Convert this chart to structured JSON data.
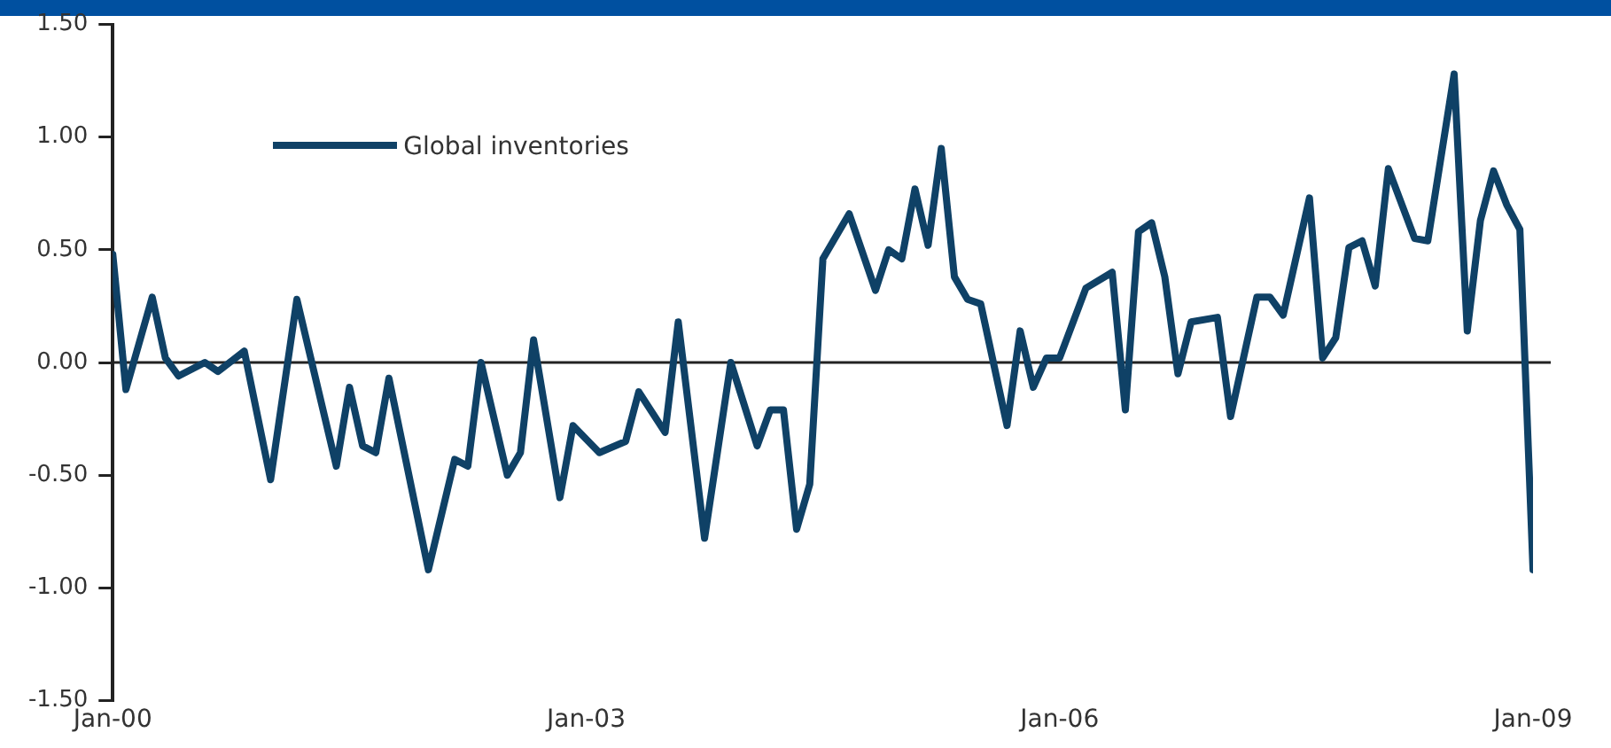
{
  "chart_data": {
    "type": "line",
    "x": [
      "2000-01",
      "2000-02",
      "2000-04",
      "2000-05",
      "2000-06",
      "2000-08",
      "2000-09",
      "2000-11",
      "2001-01",
      "2001-03",
      "2001-06",
      "2001-07",
      "2001-08",
      "2001-09",
      "2001-10",
      "2002-01",
      "2002-03",
      "2002-04",
      "2002-05",
      "2002-07",
      "2002-08",
      "2002-09",
      "2002-11",
      "2002-12",
      "2003-02",
      "2003-04",
      "2003-05",
      "2003-07",
      "2003-08",
      "2003-10",
      "2003-12",
      "2004-02",
      "2004-03",
      "2004-04",
      "2004-05",
      "2004-06",
      "2004-07",
      "2004-09",
      "2004-11",
      "2004-12",
      "2005-01",
      "2005-02",
      "2005-03",
      "2005-04",
      "2005-05",
      "2005-06",
      "2005-07",
      "2005-09",
      "2005-10",
      "2005-11",
      "2005-12",
      "2006-01",
      "2006-03",
      "2006-05",
      "2006-06",
      "2006-07",
      "2006-08",
      "2006-09",
      "2006-10",
      "2006-11",
      "2007-01",
      "2007-02",
      "2007-04",
      "2007-05",
      "2007-06",
      "2007-08",
      "2007-09",
      "2007-10",
      "2007-11",
      "2007-12",
      "2008-01",
      "2008-02",
      "2008-04",
      "2008-05",
      "2008-07",
      "2008-08",
      "2008-09",
      "2008-10",
      "2008-11",
      "2008-12",
      "2009-01"
    ],
    "series": [
      {
        "name": "Global inventories",
        "color": "#0f4166",
        "values": [
          0.48,
          -0.12,
          0.29,
          0.02,
          -0.06,
          0.0,
          -0.04,
          0.05,
          -0.52,
          0.28,
          -0.46,
          -0.11,
          -0.37,
          -0.4,
          -0.07,
          -0.92,
          -0.43,
          -0.46,
          0.0,
          -0.5,
          -0.4,
          0.1,
          -0.6,
          -0.28,
          -0.4,
          -0.35,
          -0.13,
          -0.31,
          0.18,
          -0.78,
          0.0,
          -0.37,
          -0.21,
          -0.21,
          -0.74,
          -0.54,
          0.46,
          0.66,
          0.32,
          0.5,
          0.46,
          0.77,
          0.52,
          0.95,
          0.38,
          0.28,
          0.26,
          -0.28,
          0.14,
          -0.11,
          0.02,
          0.02,
          0.33,
          0.4,
          -0.21,
          0.58,
          0.62,
          0.38,
          -0.05,
          0.18,
          0.2,
          -0.24,
          0.29,
          0.29,
          0.21,
          0.73,
          0.02,
          0.11,
          0.51,
          0.54,
          0.34,
          0.86,
          0.55,
          0.54,
          1.28,
          0.14,
          0.63,
          0.85,
          0.7,
          0.59,
          -0.92
        ]
      }
    ],
    "xlim": [
      "2000-01",
      "2009-01"
    ],
    "xticks": [
      {
        "value": "2000-01",
        "label": "Jan-00"
      },
      {
        "value": "2003-01",
        "label": "Jan-03"
      },
      {
        "value": "2006-01",
        "label": "Jan-06"
      },
      {
        "value": "2009-01",
        "label": "Jan-09"
      }
    ],
    "ylim": [
      -1.5,
      1.5
    ],
    "yticks": [
      {
        "value": -1.5,
        "label": "-1.50"
      },
      {
        "value": -1,
        "label": "-1.00"
      },
      {
        "value": -0.5,
        "label": "-0.50"
      },
      {
        "value": 0,
        "label": "0.00"
      },
      {
        "value": 0.5,
        "label": "0.50"
      },
      {
        "value": 1,
        "label": "1.00"
      },
      {
        "value": 1.5,
        "label": "1.50"
      }
    ],
    "ref_lines": [
      {
        "axis": "y",
        "value": 0,
        "color": "#222222"
      }
    ],
    "grid": false,
    "legend": "top left",
    "marker": "none",
    "line_style": "solid"
  }
}
